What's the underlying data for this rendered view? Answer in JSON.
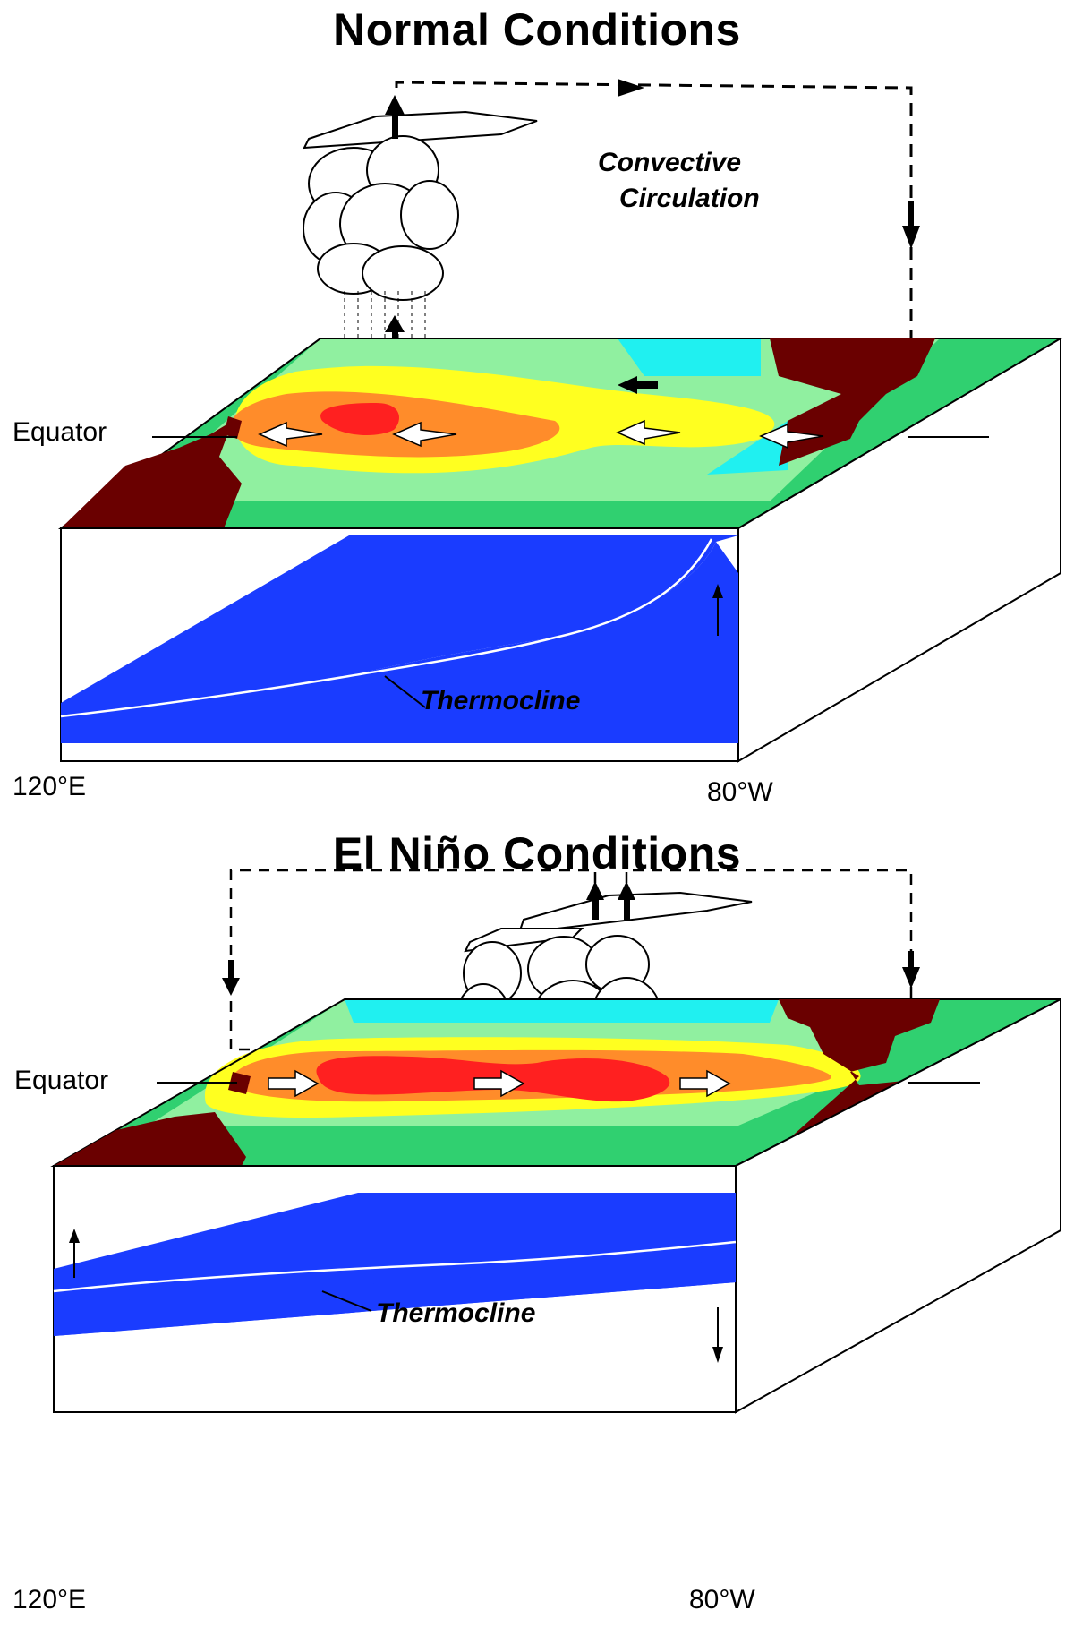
{
  "normal": {
    "title": "Normal Conditions",
    "circulation_label_1": "Convective",
    "circulation_label_2": "Circulation",
    "equator_label": "Equator",
    "thermocline_label": "Thermocline",
    "longitude_west": "120°E",
    "longitude_east": "80°W"
  },
  "elnino": {
    "title": "El Niño Conditions",
    "equator_label": "Equator",
    "thermocline_label": "Thermocline",
    "longitude_west": "120°E",
    "longitude_east": "80°W"
  },
  "colors": {
    "warmest": "#ff2020",
    "warm": "#ff8c2a",
    "mild": "#ffff20",
    "cool": "#90f0a0",
    "cooler": "#30d070",
    "cold": "#20f0f0",
    "land": "#6a0000",
    "thermocline_water": "#1a3cff"
  }
}
